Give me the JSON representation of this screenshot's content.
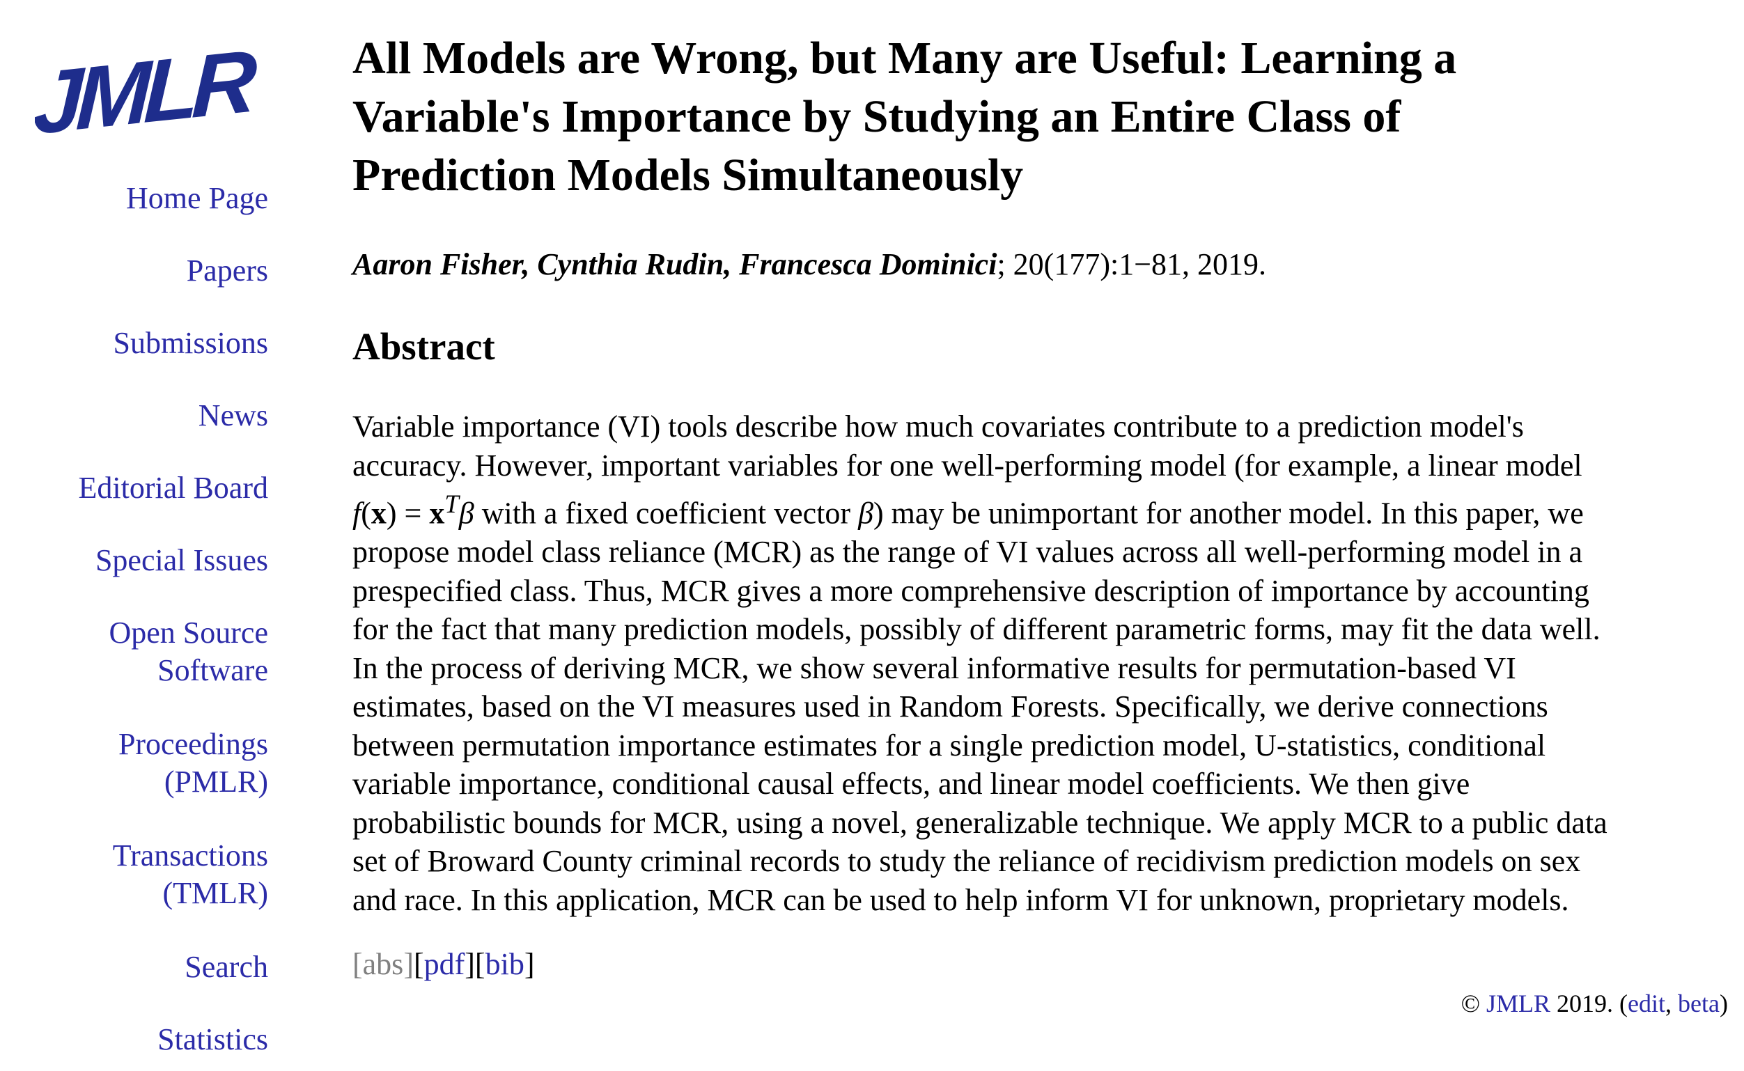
{
  "colors": {
    "link": "#2b2ba8",
    "dim_link": "#808080",
    "logo_blue": "#1e2d8c",
    "text": "#000000"
  },
  "logo": {
    "text": "JMLR"
  },
  "sidebar": {
    "items": [
      {
        "label": "Home Page"
      },
      {
        "label": "Papers"
      },
      {
        "label": "Submissions"
      },
      {
        "label": "News"
      },
      {
        "label": "Editorial Board"
      },
      {
        "label": "Special Issues"
      },
      {
        "label": "Open Source",
        "label2": "Software"
      },
      {
        "label": "Proceedings",
        "label2": "(PMLR)"
      },
      {
        "label": "Transactions",
        "label2": "(TMLR)"
      },
      {
        "label": "Search"
      },
      {
        "label": "Statistics"
      }
    ]
  },
  "paper": {
    "title_lines": [
      "All Models are Wrong, but Many are Useful: Learning a",
      "Variable's Importance by Studying an Entire Class of",
      "Prediction Models Simultaneously"
    ],
    "authors": "Aaron Fisher, Cynthia Rudin, Francesca Dominici",
    "citation": "; 20(177):1−81, 2019.",
    "abstract_heading": "Abstract",
    "abstract_lines": [
      "Variable importance (VI) tools describe how much covariates contribute to a prediction model's",
      "accuracy. However, important variables for one well-performing model (for example, a linear model",
      "with a fixed coefficient vector",
      "propose model class reliance (MCR) as the range of VI values across all well-performing model in a",
      "prespecified class. Thus, MCR gives a more comprehensive description of importance by accounting",
      "for the fact that many prediction models, possibly of different parametric forms, may fit the data well.",
      "In the process of deriving MCR, we show several informative results for permutation-based VI",
      "estimates, based on the VI measures used in Random Forests. Specifically, we derive connections",
      "between permutation importance estimates for a single prediction model, U-statistics, conditional",
      "variable importance, conditional causal effects, and linear model coefficients. We then give",
      "probabilistic bounds for MCR, using a novel, generalizable technique. We apply MCR to a public data",
      "set of Broward County criminal records to study the reliance of recidivism prediction models on sex",
      "and race. In this application, MCR can be used to help inform VI for unknown, proprietary models."
    ],
    "abstract_line3_tail": ") may be unimportant for another model. In this paper, we",
    "math": {
      "f": "f",
      "x": "x",
      "eq": " = ",
      "T": "T",
      "beta": "β"
    },
    "links": {
      "abs": "abs",
      "pdf": "pdf",
      "bib": "bib"
    }
  },
  "footer": {
    "copyright": "© ",
    "jmlr": "JMLR",
    "year": " 2019. (",
    "edit": "edit",
    "sep": ", ",
    "beta": "beta",
    "close": ")"
  }
}
